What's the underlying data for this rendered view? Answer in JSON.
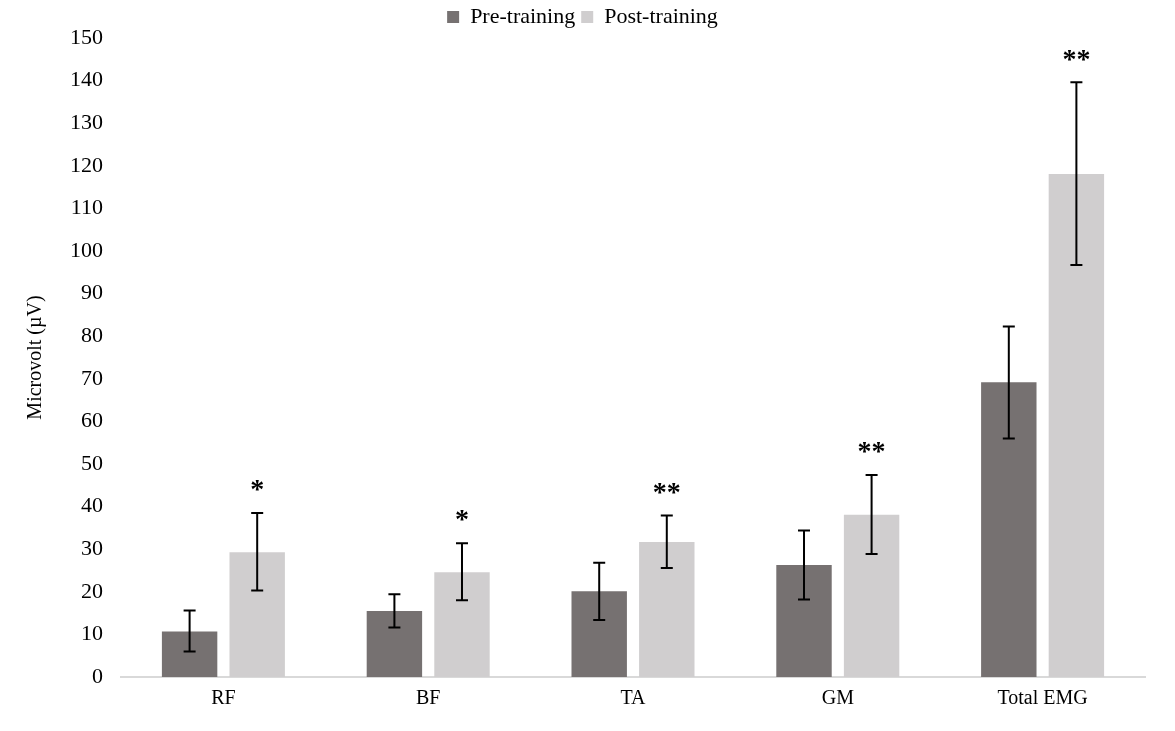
{
  "chart_data": {
    "type": "bar",
    "ylabel": "Microvolt (µV)",
    "categories": [
      "RF",
      "BF",
      "TA",
      "GM",
      "Total EMG"
    ],
    "series": [
      {
        "name": "Pre-training",
        "color": "#767171",
        "values": [
          10.7,
          15.5,
          20.1,
          26.3,
          69.2
        ],
        "errors": [
          [
            6.0,
            15.6
          ],
          [
            11.6,
            19.4
          ],
          [
            13.4,
            26.8
          ],
          [
            18.2,
            34.4
          ],
          [
            56.0,
            82.3
          ]
        ]
      },
      {
        "name": "Post-training",
        "color": "#d0cecf",
        "values": [
          29.3,
          24.6,
          31.7,
          38.1,
          118.1
        ],
        "errors": [
          [
            20.3,
            38.5
          ],
          [
            18.0,
            31.4
          ],
          [
            25.6,
            37.9
          ],
          [
            28.9,
            47.4
          ],
          [
            96.7,
            139.6
          ]
        ]
      }
    ],
    "ylim": [
      0,
      150
    ],
    "yticks": [
      0,
      10,
      20,
      30,
      40,
      50,
      60,
      70,
      80,
      90,
      100,
      110,
      120,
      130,
      140,
      150
    ],
    "grid": false,
    "legend": "top",
    "annotations": [
      "*",
      "*",
      "**",
      "**",
      "**"
    ]
  }
}
